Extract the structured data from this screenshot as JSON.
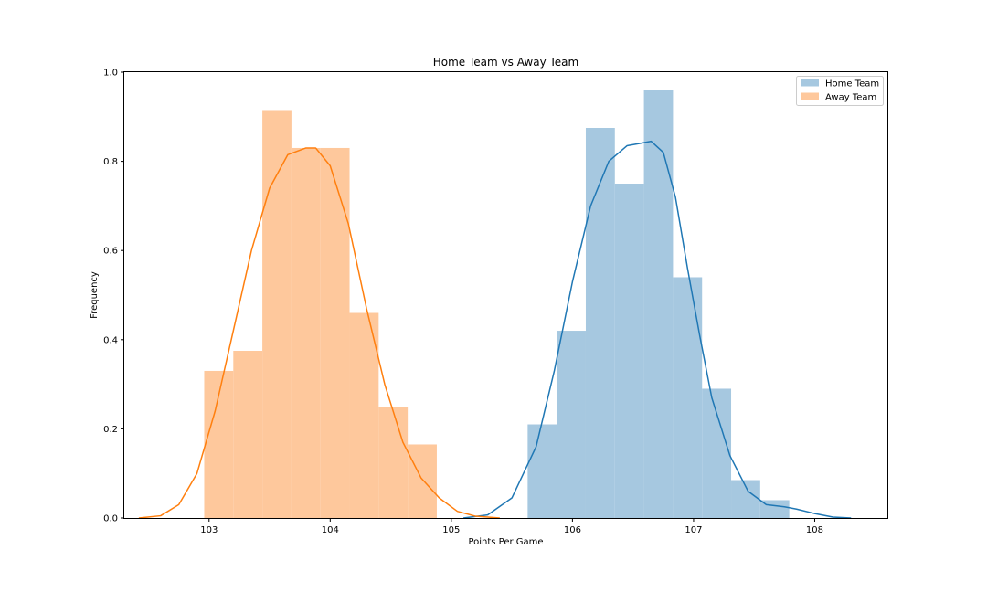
{
  "chart_data": {
    "type": "bar",
    "title": "Home Team vs Away Team",
    "xlabel": "Points Per Game",
    "ylabel": "Frequency",
    "xlim": [
      102.3,
      108.6
    ],
    "ylim": [
      0,
      1.0
    ],
    "xticks": [
      103,
      104,
      105,
      106,
      107,
      108
    ],
    "yticks": [
      0.0,
      0.2,
      0.4,
      0.6,
      0.8,
      1.0
    ],
    "xtick_labels": [
      "103",
      "104",
      "105",
      "106",
      "107",
      "108"
    ],
    "ytick_labels": [
      "0.0",
      "0.2",
      "0.4",
      "0.6",
      "0.8",
      "1.0"
    ],
    "legend_position": "top-right",
    "series": [
      {
        "name": "Home Team",
        "color": "#1f77b4",
        "bar_color": "#a6c8e0",
        "bins": [
          {
            "x0": 105.63,
            "x1": 105.87,
            "value": 0.21
          },
          {
            "x0": 105.87,
            "x1": 106.11,
            "value": 0.42
          },
          {
            "x0": 106.11,
            "x1": 106.35,
            "value": 0.875
          },
          {
            "x0": 106.35,
            "x1": 106.59,
            "value": 0.75
          },
          {
            "x0": 106.59,
            "x1": 106.83,
            "value": 0.96
          },
          {
            "x0": 106.83,
            "x1": 107.07,
            "value": 0.54
          },
          {
            "x0": 107.07,
            "x1": 107.31,
            "value": 0.29
          },
          {
            "x0": 107.31,
            "x1": 107.55,
            "value": 0.085
          },
          {
            "x0": 107.55,
            "x1": 107.79,
            "value": 0.04
          }
        ],
        "kde": {
          "x": [
            105.1,
            105.3,
            105.5,
            105.7,
            105.85,
            106.0,
            106.15,
            106.3,
            106.45,
            106.55,
            106.65,
            106.75,
            106.85,
            106.95,
            107.05,
            107.15,
            107.3,
            107.45,
            107.6,
            107.75,
            107.85,
            108.0,
            108.15,
            108.3
          ],
          "y": [
            0.0,
            0.007,
            0.045,
            0.16,
            0.33,
            0.53,
            0.7,
            0.8,
            0.835,
            0.84,
            0.845,
            0.82,
            0.72,
            0.56,
            0.41,
            0.27,
            0.14,
            0.06,
            0.03,
            0.025,
            0.02,
            0.01,
            0.002,
            0.0
          ]
        }
      },
      {
        "name": "Away Team",
        "color": "#ff7f0e",
        "bar_color": "#fec89c",
        "bins": [
          {
            "x0": 102.96,
            "x1": 103.2,
            "value": 0.33
          },
          {
            "x0": 103.2,
            "x1": 103.44,
            "value": 0.375
          },
          {
            "x0": 103.44,
            "x1": 103.68,
            "value": 0.915
          },
          {
            "x0": 103.68,
            "x1": 103.92,
            "value": 0.83
          },
          {
            "x0": 103.92,
            "x1": 104.16,
            "value": 0.83
          },
          {
            "x0": 104.16,
            "x1": 104.4,
            "value": 0.46
          },
          {
            "x0": 104.4,
            "x1": 104.64,
            "value": 0.25
          },
          {
            "x0": 104.64,
            "x1": 104.88,
            "value": 0.165
          }
        ],
        "kde": {
          "x": [
            102.42,
            102.6,
            102.75,
            102.9,
            103.05,
            103.2,
            103.35,
            103.5,
            103.65,
            103.8,
            103.88,
            104.0,
            104.15,
            104.3,
            104.45,
            104.6,
            104.75,
            104.9,
            105.05,
            105.2,
            105.4
          ],
          "y": [
            0.0,
            0.005,
            0.03,
            0.1,
            0.24,
            0.42,
            0.6,
            0.74,
            0.815,
            0.83,
            0.83,
            0.79,
            0.66,
            0.47,
            0.3,
            0.17,
            0.09,
            0.045,
            0.015,
            0.004,
            0.0
          ]
        }
      }
    ]
  }
}
